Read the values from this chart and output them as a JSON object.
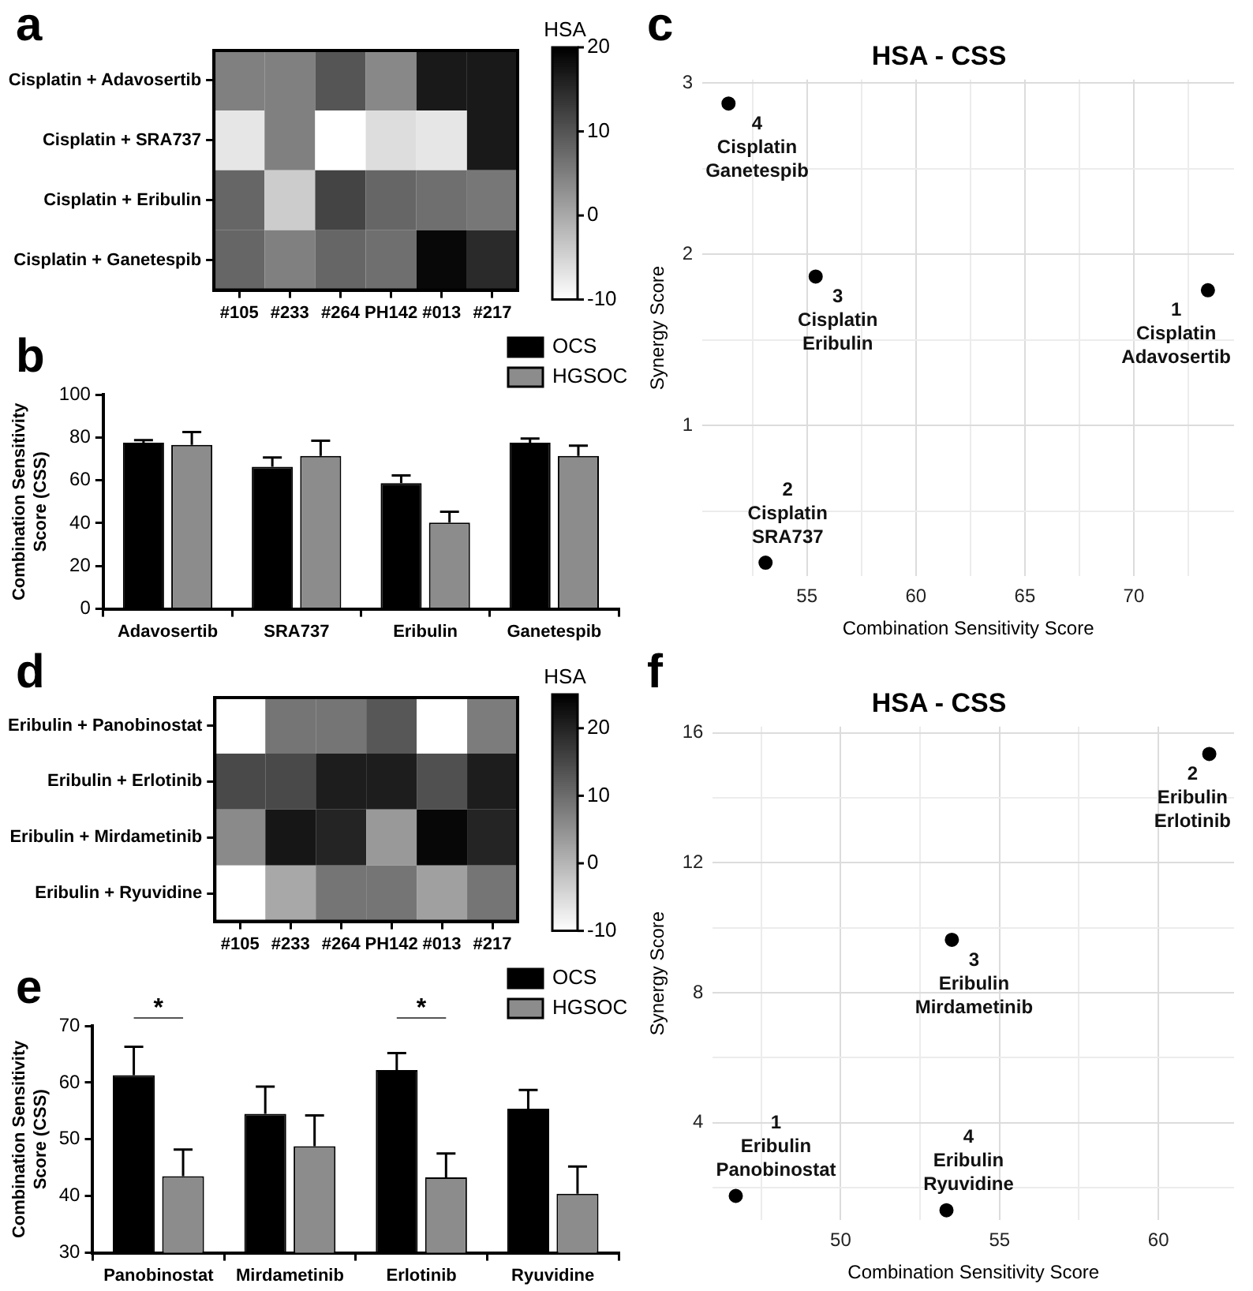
{
  "chart_data": [
    {
      "type": "heatmap",
      "annotations": [
        "a"
      ],
      "categories": [
        "#105",
        "#233",
        "#264",
        "PH142",
        "#013",
        "#217"
      ],
      "y_categories": [
        "Cisplatin + Adavosertib",
        "Cisplatin + SRA737",
        "Cisplatin + Eribulin",
        "Cisplatin + Ganetespib"
      ],
      "cells": [
        [
          5,
          5,
          10,
          4,
          17,
          17
        ],
        [
          -7,
          5,
          -10,
          -6,
          -7,
          17
        ],
        [
          8,
          -4,
          12,
          8,
          7,
          6
        ],
        [
          8,
          5,
          8,
          7,
          19,
          15
        ]
      ],
      "clim": [
        -10,
        20
      ],
      "cticks": [
        -10,
        0,
        10,
        20
      ],
      "clabel": "HSA"
    },
    {
      "type": "bar",
      "annotations": [
        "b"
      ],
      "categories": [
        "Adavosertib",
        "SRA737",
        "Eribulin",
        "Ganetespib"
      ],
      "ylabel": "Combination Sensitivity Score (CSS)",
      "ylim": [
        0,
        100
      ],
      "yticks": [
        0,
        20,
        40,
        60,
        80,
        100
      ],
      "legend": "top right",
      "series": [
        {
          "name": "OCS",
          "color": "#000000",
          "values": [
            77.5,
            66.3,
            58.7,
            77.5
          ],
          "errors": [
            [
              77.5,
              78.7
            ],
            [
              66.3,
              70.6
            ],
            [
              58.7,
              62.3
            ],
            [
              77.5,
              79.5
            ]
          ]
        },
        {
          "name": "HGSOC",
          "color": "#8c8c8c",
          "values": [
            76.5,
            71.4,
            40.3,
            71.4
          ],
          "errors": [
            [
              76.5,
              82.5
            ],
            [
              71.4,
              78.5
            ],
            [
              40.3,
              45.3
            ],
            [
              71.4,
              76.2
            ]
          ]
        }
      ]
    },
    {
      "type": "scatter",
      "title": "HSA - CSS",
      "xlabel": "Combination Sensitivity Score",
      "ylabel": "Synergy Score",
      "xlim": [
        50.2,
        74.6
      ],
      "ylim": [
        0.12,
        3.02
      ],
      "xticks": [
        {
          "value": 52.5,
          "label": null
        },
        55,
        {
          "value": 57.5,
          "label": null
        },
        60,
        {
          "value": 62.5,
          "label": null
        },
        65,
        {
          "value": 67.5,
          "label": null
        },
        70,
        {
          "value": 72.5,
          "label": null
        }
      ],
      "yticks": [
        {
          "value": 0.5,
          "label": null
        },
        1,
        {
          "value": 1.5,
          "label": null
        },
        2,
        {
          "value": 2.5,
          "label": null
        },
        3
      ],
      "grid": true,
      "marker": "circle",
      "series": [
        {
          "color": "#000000",
          "x": [
            73.4,
            53.1,
            55.4,
            51.4
          ],
          "values": [
            1.79,
            0.2,
            1.87,
            2.88
          ]
        }
      ],
      "annotations": [
        "c",
        {
          "text": "1\nCisplatin\nAdavosertib",
          "x": 73.4,
          "y": 1.79
        },
        {
          "text": "2\nCisplatin\nSRA737",
          "x": 53.1,
          "y": 0.2
        },
        {
          "text": "3\nCisplatin\nEribulin",
          "x": 55.4,
          "y": 1.87
        },
        {
          "text": "4\nCisplatin\nGanetespib",
          "x": 51.4,
          "y": 2.88
        }
      ]
    },
    {
      "type": "heatmap",
      "annotations": [
        "d"
      ],
      "categories": [
        "#105",
        "#233",
        "#264",
        "PH142",
        "#013",
        "#217"
      ],
      "y_categories": [
        "Eribulin + Panobinostat",
        "Eribulin + Erlotinib",
        "Eribulin + Mirdametinib",
        "Eribulin + Ryuvidine"
      ],
      "cells": [
        [
          -10,
          9,
          9,
          13,
          -10,
          8
        ],
        [
          15,
          15,
          21,
          21,
          14,
          21
        ],
        [
          6,
          22,
          20,
          4,
          24,
          20
        ],
        [
          -10,
          2,
          9,
          9,
          3,
          9
        ]
      ],
      "clim": [
        -10,
        25
      ],
      "cticks": [
        -10,
        0,
        10,
        20
      ],
      "clabel": "HSA"
    },
    {
      "type": "bar",
      "categories": [
        "Panobinostat",
        "Mirdametinib",
        "Erlotinib",
        "Ryuvidine"
      ],
      "ylabel": "Combination Sensitivity Score (CSS)",
      "ylim": [
        30,
        70
      ],
      "yticks": [
        30,
        40,
        50,
        60,
        70
      ],
      "legend": "top right",
      "series": [
        {
          "name": "OCS",
          "color": "#000000",
          "values": [
            61.3,
            54.5,
            62.2,
            55.4
          ],
          "errors": [
            [
              61.3,
              66.3
            ],
            [
              54.5,
              59.3
            ],
            [
              62.2,
              65.2
            ],
            [
              55.4,
              58.7
            ]
          ]
        },
        {
          "name": "HGSOC",
          "color": "#8c8c8c",
          "values": [
            43.5,
            48.8,
            43.3,
            40.4
          ],
          "errors": [
            [
              43.5,
              48.2
            ],
            [
              48.8,
              54.2
            ],
            [
              43.3,
              47.5
            ],
            [
              40.4,
              45.2
            ]
          ]
        }
      ],
      "annotations": [
        "e",
        "*",
        "*"
      ]
    },
    {
      "type": "scatter",
      "title": "HSA - CSS",
      "xlabel": "Combination Sensitivity Score",
      "ylabel": "Synergy Score",
      "xlim": [
        45.98,
        62.38
      ],
      "ylim": [
        1.0,
        16.19
      ],
      "xticks": [
        {
          "value": 47.5,
          "label": null
        },
        50,
        {
          "value": 52.5,
          "label": null
        },
        55,
        {
          "value": 57.5,
          "label": null
        },
        60
      ],
      "yticks": [
        {
          "value": 2,
          "label": null
        },
        4,
        {
          "value": 6,
          "label": null
        },
        8,
        {
          "value": 10,
          "label": null
        },
        12,
        {
          "value": 14,
          "label": null
        },
        16
      ],
      "grid": true,
      "marker": "circle",
      "series": [
        {
          "color": "#000000",
          "x": [
            46.7,
            61.6,
            53.5,
            53.33
          ],
          "values": [
            1.75,
            15.35,
            9.63,
            1.31
          ]
        }
      ],
      "annotations": [
        "f",
        {
          "text": "1\nEribulin\nPanobinostat",
          "x": 46.7,
          "y": 1.75
        },
        {
          "text": "2\nEribulin\nErlotinib",
          "x": 61.6,
          "y": 15.35
        },
        {
          "text": "3\nEribulin\nMirdametinib",
          "x": 53.5,
          "y": 9.63
        },
        {
          "text": "4\nEribulin\nRyuvidine",
          "x": 53.33,
          "y": 1.31
        }
      ]
    }
  ]
}
